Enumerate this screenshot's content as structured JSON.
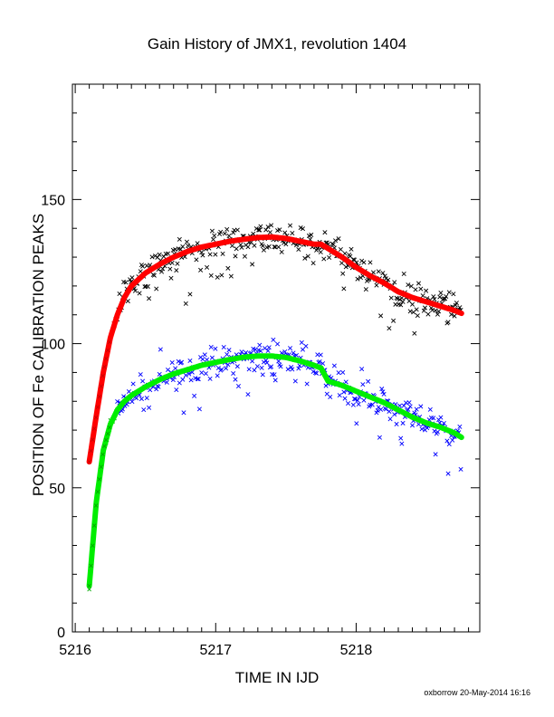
{
  "chart_data": {
    "type": "scatter",
    "title": "Gain History of JMX1, revolution 1404",
    "xlabel": "TIME IN IJD",
    "ylabel": "POSITION OF Fe CALIBRATION PEAKS",
    "xlim": [
      5215.98,
      5218.88
    ],
    "ylim": [
      0,
      190
    ],
    "x_ticks": [
      "5216",
      "5217",
      "5218"
    ],
    "y_ticks": [
      "0",
      "50",
      "100",
      "150"
    ],
    "grid": false,
    "footer": "oxborrow 20-May-2014 16:16",
    "series": [
      {
        "marker": "x",
        "color": "#000000",
        "curve_x": [
          5216.1,
          5216.15,
          5216.2,
          5216.25,
          5216.3,
          5216.35,
          5216.4,
          5216.5,
          5216.6,
          5216.7,
          5216.8,
          5216.9,
          5217.0,
          5217.1,
          5217.2,
          5217.3,
          5217.4,
          5217.5,
          5217.6,
          5217.7,
          5217.75,
          5217.8,
          5217.9,
          5218.0,
          5218.1,
          5218.2,
          5218.3,
          5218.4,
          5218.5,
          5218.6,
          5218.7,
          5218.75
        ],
        "curve_y": [
          59,
          75,
          90,
          102,
          110,
          116,
          120,
          124.5,
          127.5,
          130,
          132,
          133.5,
          134.5,
          135.5,
          136.2,
          136.8,
          137,
          136.5,
          135.5,
          134.5,
          134.5,
          133,
          130,
          126.5,
          123.5,
          121,
          118,
          116,
          114.5,
          113,
          111.5,
          110.5
        ],
        "scatter_spread": 3.5
      },
      {
        "marker": "x",
        "color": "#0000ff",
        "curve_x": [
          5216.1,
          5216.15,
          5216.2,
          5216.25,
          5216.3,
          5216.35,
          5216.4,
          5216.5,
          5216.6,
          5216.7,
          5216.8,
          5216.9,
          5217.0,
          5217.1,
          5217.2,
          5217.3,
          5217.4,
          5217.5,
          5217.6,
          5217.7,
          5217.75,
          5217.8,
          5217.9,
          5218.0,
          5218.1,
          5218.2,
          5218.3,
          5218.4,
          5218.5,
          5218.6,
          5218.7,
          5218.75
        ],
        "curve_y": [
          16,
          45,
          63,
          72,
          77,
          80,
          82,
          85,
          87.5,
          89.5,
          91,
          92.5,
          93.5,
          94.5,
          95.3,
          95.7,
          95.7,
          95.2,
          94,
          92.5,
          91.5,
          87,
          85.5,
          83.5,
          81.5,
          79.5,
          77,
          74.5,
          72.5,
          71,
          69,
          67.5
        ],
        "scatter_spread": 3.5
      }
    ]
  },
  "colors": {
    "fit_upper": "#ff0000",
    "fit_lower": "#00ee00",
    "early_upper": "#cc0000",
    "early_lower": "#00aa00"
  }
}
